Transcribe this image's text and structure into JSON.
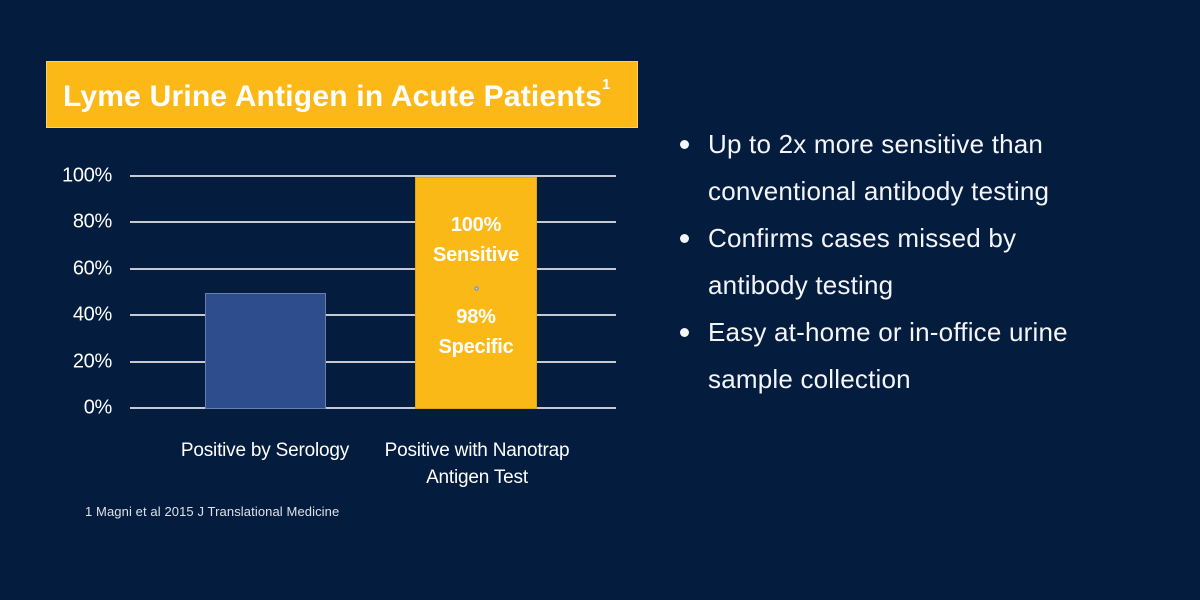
{
  "slide": {
    "background": "#041C3E",
    "title": {
      "text": "Lyme Urine Antigen in Acute Patients",
      "superscript": "1",
      "banner_color": "#FCB817",
      "text_color": "#FFFFFF"
    },
    "bullets": [
      {
        "lines": [
          "Up to 2x more sensitive than",
          "conventional antibody testing"
        ]
      },
      {
        "lines": [
          "Confirms cases missed by",
          "antibody testing"
        ]
      },
      {
        "lines": [
          "Easy at-home or in-office urine",
          "sample collection"
        ]
      }
    ],
    "footnote": "1 Magni et al 2015 J Translational Medicine"
  },
  "chart_data": {
    "type": "bar",
    "categories": [
      "Positive by Serology",
      "Positive with Nanotrap Antigen Test"
    ],
    "values": [
      50,
      100
    ],
    "title": "Lyme Urine Antigen in Acute Patients",
    "xlabel": "",
    "ylabel": "",
    "ylim": [
      0,
      100
    ],
    "y_ticks": [
      "0%",
      "20%",
      "40%",
      "60%",
      "80%",
      "100%"
    ],
    "grid": true,
    "legend_position": "none",
    "bar_colors": [
      "#2E4D8C",
      "#FBB917"
    ],
    "gridline_color": "#C4C9D3",
    "category_lines": [
      [
        "Positive by Serology"
      ],
      [
        "Positive with Nanotrap",
        "Antigen Test"
      ]
    ],
    "annotations": [
      {
        "on_bar": "Positive with Nanotrap Antigen Test",
        "value_label": "100%",
        "word": "Sensitive"
      },
      {
        "on_bar": "Positive with Nanotrap Antigen Test",
        "value_label": "98%",
        "word": "Specific"
      }
    ]
  }
}
